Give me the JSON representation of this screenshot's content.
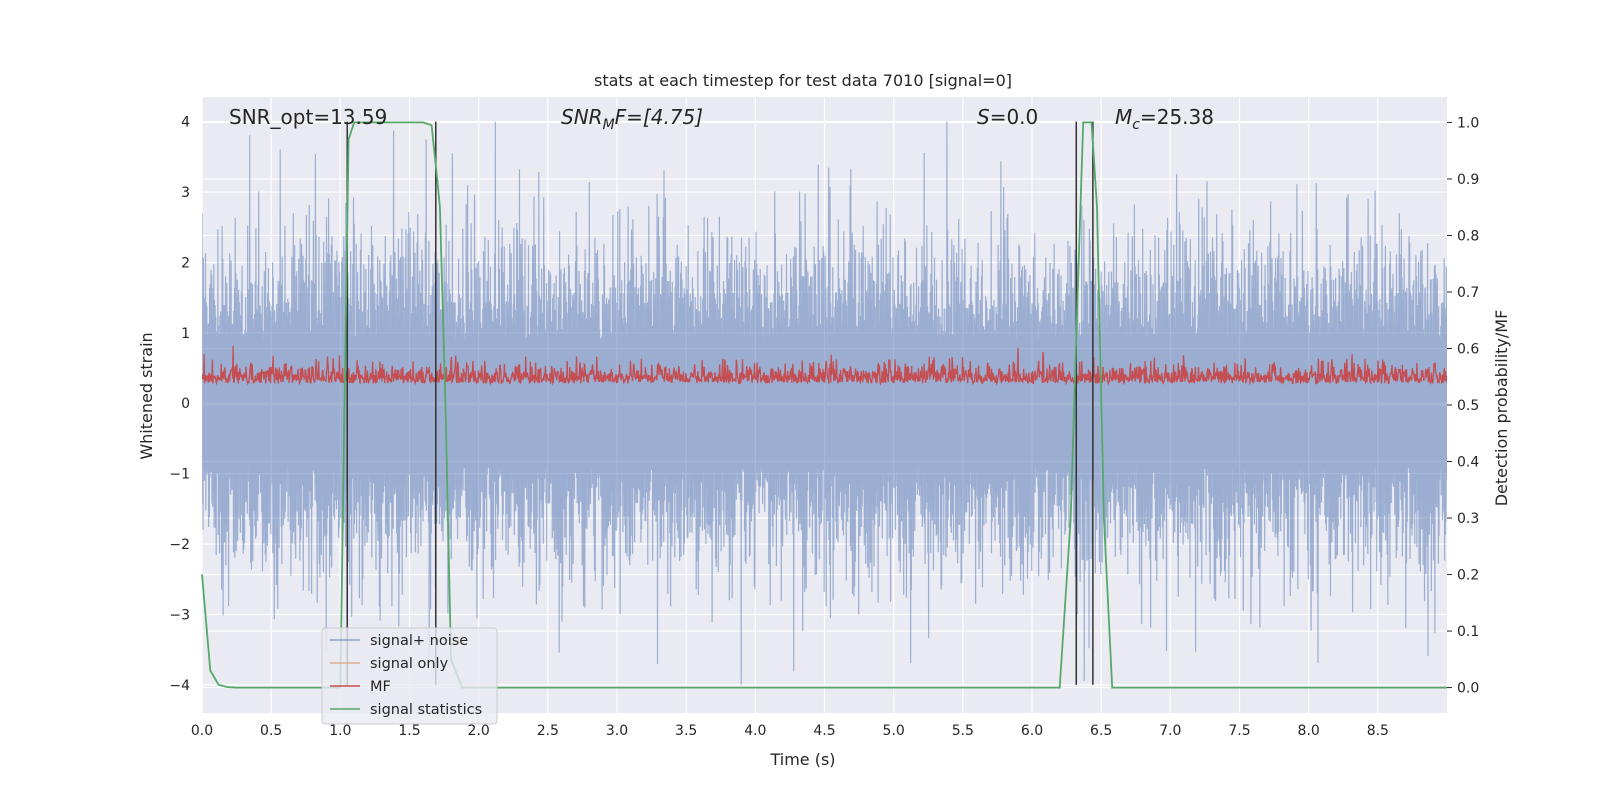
{
  "chart_data": {
    "type": "line",
    "title": "stats at each timestep for test data 7010 [signal=0]",
    "xlabel": "Time (s)",
    "ylabel": "Whitened strain",
    "y2label": "Detection probability/MF",
    "xlim": [
      0.0,
      9.0
    ],
    "ylim": [
      -4.4,
      4.35
    ],
    "y2lim": [
      -0.045,
      1.045
    ],
    "x_ticks": [
      "0.0",
      "0.5",
      "1.0",
      "1.5",
      "2.0",
      "2.5",
      "3.0",
      "3.5",
      "4.0",
      "4.5",
      "5.0",
      "5.5",
      "6.0",
      "6.5",
      "7.0",
      "7.5",
      "8.0",
      "8.5"
    ],
    "y_ticks": [
      "4",
      "3",
      "2",
      "1",
      "0",
      "−1",
      "−2",
      "−3",
      "−4"
    ],
    "y2_ticks": [
      "1.0",
      "0.9",
      "0.8",
      "0.7",
      "0.6",
      "0.5",
      "0.4",
      "0.3",
      "0.2",
      "0.1",
      "0.0"
    ],
    "grid": true,
    "legend_position": "lower-left",
    "annotations": {
      "snr_opt": "SNR_opt=13.59",
      "snr_mf_label": "SNR",
      "snr_mf_sub": "M",
      "snr_mf_rest": "F=[4.75]",
      "s_label": "S",
      "s_rest": "=0.0",
      "mc_label": "M",
      "mc_sub": "c",
      "mc_rest": "=25.38"
    },
    "series": [
      {
        "name": "signal+ noise",
        "color": "#4c72b0",
        "opacity": 0.5,
        "axis": "left",
        "amplitude_range": [
          -4.0,
          4.0
        ]
      },
      {
        "name": "signal only",
        "color": "#dd8452",
        "axis": "left",
        "values": []
      },
      {
        "name": "MF",
        "color": "#c44e52",
        "axis": "left",
        "amplitude_range": [
          0.0,
          1.0
        ]
      },
      {
        "name": "signal statistics",
        "color": "#55a868",
        "axis": "right",
        "x": [
          0.0,
          0.06,
          0.12,
          0.18,
          0.25,
          0.4,
          1.0,
          1.03,
          1.06,
          1.1,
          1.14,
          1.6,
          1.66,
          1.7,
          1.72,
          1.76,
          1.8,
          1.88,
          2.0,
          6.2,
          6.28,
          6.33,
          6.37,
          6.43,
          6.47,
          6.52,
          6.58,
          6.65,
          9.0
        ],
        "values": [
          0.2,
          0.03,
          0.005,
          0.001,
          0.0,
          0.0,
          0.0,
          0.5,
          0.97,
          1.0,
          1.0,
          1.0,
          0.995,
          0.9,
          0.85,
          0.5,
          0.05,
          0.0,
          0.0,
          0.0,
          0.3,
          0.7,
          1.0,
          1.0,
          0.85,
          0.3,
          0.0,
          0.0,
          0.0
        ]
      }
    ],
    "vertical_markers": [
      {
        "x": 1.05,
        "y_from": -4.0,
        "y_to": 4.0,
        "color": "#333333"
      },
      {
        "x": 1.69,
        "y_from": -4.0,
        "y_to": 4.0,
        "color": "#333333"
      },
      {
        "x": 6.32,
        "y_from": -4.0,
        "y_to": 4.0,
        "color": "#333333"
      },
      {
        "x": 6.44,
        "y_from": -4.0,
        "y_to": 4.0,
        "color": "#333333"
      }
    ],
    "colors": {
      "background": "#eaeaf2",
      "grid": "#ffffff"
    }
  }
}
